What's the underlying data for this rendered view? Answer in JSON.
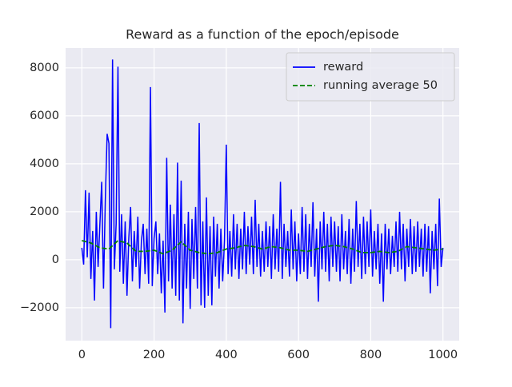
{
  "chart_data": {
    "type": "line",
    "title": "Reward as a function of the epoch/episode",
    "xlim": [
      -45,
      1045
    ],
    "ylim": [
      -3370,
      8830
    ],
    "xticks": [
      0,
      200,
      400,
      600,
      800,
      1000
    ],
    "yticks": [
      {
        "value": -2000,
        "label": "−2000"
      },
      0,
      2000,
      4000,
      6000,
      8000
    ],
    "grid": true,
    "legend": "upper right",
    "series": [
      {
        "name": "reward",
        "color": "#0000ff",
        "dash": "solid",
        "x": [
          0,
          5,
          10,
          15,
          20,
          25,
          30,
          35,
          40,
          45,
          50,
          55,
          60,
          65,
          70,
          75,
          80,
          85,
          90,
          95,
          100,
          105,
          110,
          115,
          120,
          125,
          130,
          135,
          140,
          145,
          150,
          155,
          160,
          165,
          170,
          175,
          180,
          185,
          190,
          195,
          200,
          205,
          210,
          215,
          220,
          225,
          230,
          235,
          240,
          245,
          250,
          255,
          260,
          265,
          270,
          275,
          280,
          285,
          290,
          295,
          300,
          305,
          310,
          315,
          320,
          325,
          330,
          335,
          340,
          345,
          350,
          355,
          360,
          365,
          370,
          375,
          380,
          385,
          390,
          395,
          400,
          405,
          410,
          415,
          420,
          425,
          430,
          435,
          440,
          445,
          450,
          455,
          460,
          465,
          470,
          475,
          480,
          485,
          490,
          495,
          500,
          505,
          510,
          515,
          520,
          525,
          530,
          535,
          540,
          545,
          550,
          555,
          560,
          565,
          570,
          575,
          580,
          585,
          590,
          595,
          600,
          605,
          610,
          615,
          620,
          625,
          630,
          635,
          640,
          645,
          650,
          655,
          660,
          665,
          670,
          675,
          680,
          685,
          690,
          695,
          700,
          705,
          710,
          715,
          720,
          725,
          730,
          735,
          740,
          745,
          750,
          755,
          760,
          765,
          770,
          775,
          780,
          785,
          790,
          795,
          800,
          805,
          810,
          815,
          820,
          825,
          830,
          835,
          840,
          845,
          850,
          855,
          860,
          865,
          870,
          875,
          880,
          885,
          890,
          895,
          900,
          905,
          910,
          915,
          920,
          925,
          930,
          935,
          940,
          945,
          950,
          955,
          960,
          965,
          970,
          975,
          980,
          985,
          990,
          995,
          1000
        ],
        "values": [
          500,
          -200,
          2900,
          100,
          2800,
          -800,
          1200,
          -1700,
          2000,
          -300,
          1500,
          3250,
          -1200,
          2500,
          5250,
          4850,
          -2850,
          8350,
          -400,
          1500,
          8050,
          -500,
          1900,
          -1000,
          1600,
          -1500,
          900,
          2200,
          -900,
          1200,
          -300,
          1800,
          -1200,
          800,
          1500,
          -600,
          1300,
          -1000,
          7200,
          -1100,
          900,
          1600,
          -600,
          1100,
          -1400,
          800,
          -2200,
          4250,
          -900,
          2300,
          -1200,
          1900,
          -1500,
          4050,
          -1700,
          3300,
          -2650,
          1500,
          -1200,
          2000,
          -2050,
          1700,
          -800,
          2200,
          -1200,
          5700,
          -1900,
          1600,
          -2000,
          2600,
          -1500,
          1400,
          -1900,
          1800,
          -700,
          1500,
          -1200,
          1300,
          -900,
          800,
          4800,
          -600,
          1200,
          -700,
          1900,
          -400,
          1500,
          -800,
          1300,
          -400,
          2000,
          -600,
          1400,
          -200,
          1800,
          -600,
          2500,
          -300,
          1500,
          -700,
          1200,
          -500,
          1600,
          -300,
          1400,
          -800,
          1900,
          -400,
          1300,
          -500,
          3250,
          -800,
          1500,
          -300,
          1200,
          -700,
          2100,
          -400,
          1600,
          -900,
          1100,
          -600,
          2200,
          -500,
          1900,
          -800,
          1500,
          -300,
          2400,
          -700,
          1300,
          -1750,
          1600,
          -400,
          2000,
          -500,
          1500,
          -900,
          1800,
          -300,
          1600,
          -500,
          1400,
          -900,
          1900,
          -400,
          1200,
          -600,
          1700,
          -1000,
          1300,
          -500,
          2450,
          -300,
          1500,
          -800,
          1800,
          -600,
          1600,
          -300,
          2100,
          -700,
          1200,
          -400,
          1500,
          -1000,
          1100,
          -1750,
          1500,
          -400,
          1300,
          -600,
          1000,
          -300,
          1600,
          -500,
          2000,
          -400,
          1500,
          -900,
          1300,
          -300,
          1700,
          -600,
          1400,
          -500,
          1600,
          -300,
          1300,
          -700,
          1500,
          -500,
          1400,
          -1400,
          1200,
          -400,
          1500,
          -1100,
          2550,
          -300,
          500
        ]
      },
      {
        "name": "running average 50",
        "color": "#008000",
        "dash": "dashed",
        "x": [
          0,
          25,
          50,
          75,
          100,
          125,
          150,
          175,
          200,
          225,
          250,
          275,
          300,
          325,
          350,
          375,
          400,
          425,
          450,
          475,
          500,
          525,
          550,
          575,
          600,
          625,
          650,
          675,
          700,
          725,
          750,
          775,
          800,
          825,
          850,
          875,
          900,
          925,
          950,
          975,
          1000
        ],
        "values": [
          800,
          700,
          500,
          450,
          800,
          700,
          350,
          350,
          400,
          250,
          400,
          750,
          400,
          300,
          250,
          300,
          450,
          500,
          600,
          550,
          450,
          550,
          500,
          400,
          400,
          350,
          450,
          550,
          600,
          550,
          450,
          300,
          300,
          350,
          300,
          350,
          550,
          500,
          450,
          400,
          450
        ]
      }
    ]
  }
}
